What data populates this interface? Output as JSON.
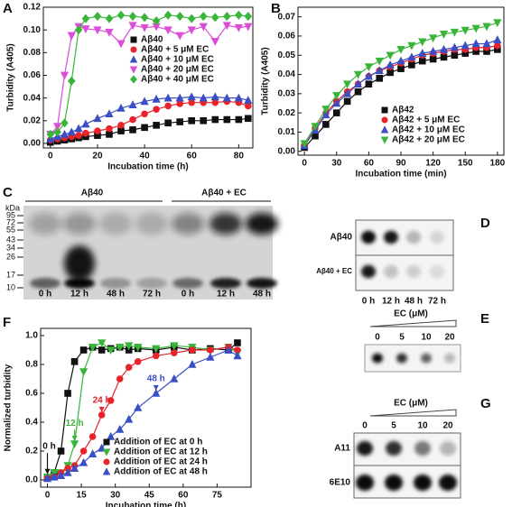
{
  "chart_data": [
    {
      "type": "line",
      "panel": "A",
      "xlabel": "Incubation time (h)",
      "ylabel": "Turbidity (A405)",
      "x": [
        0,
        3,
        6,
        9,
        12,
        15,
        20,
        25,
        30,
        35,
        40,
        45,
        50,
        55,
        60,
        65,
        70,
        75,
        80,
        84
      ],
      "xlim": [
        -3,
        86
      ],
      "xticks": [
        0,
        20,
        40,
        60,
        80
      ],
      "ylim": [
        -0.004,
        0.12
      ],
      "yticks": [
        {
          "value": 0,
          "label": "0.00"
        },
        0.02,
        0.04,
        0.06,
        0.08,
        {
          "value": 0.1,
          "label": "0.10"
        },
        0.12
      ],
      "legend": "center right",
      "series": [
        {
          "name": "Aβ40",
          "color": "#111111",
          "marker": "square",
          "values": [
            0.001,
            0.002,
            0.003,
            0.004,
            0.005,
            0.006,
            0.007,
            0.008,
            0.011,
            0.012,
            0.014,
            0.016,
            0.018,
            0.019,
            0.02,
            0.02,
            0.021,
            0.021,
            0.021,
            0.022
          ]
        },
        {
          "name": "Aβ40 + 5 μM EC",
          "color": "#e8232a",
          "marker": "circle",
          "values": [
            0.003,
            0.004,
            0.005,
            0.006,
            0.007,
            0.009,
            0.011,
            0.013,
            0.016,
            0.021,
            0.026,
            0.03,
            0.033,
            0.035,
            0.036,
            0.036,
            0.036,
            0.037,
            0.036,
            0.033
          ]
        },
        {
          "name": "Aβ40 + 10 μM EC",
          "color": "#3a4fc4",
          "marker": "triangle-up",
          "values": [
            0.004,
            0.006,
            0.008,
            0.01,
            0.013,
            0.017,
            0.022,
            0.026,
            0.031,
            0.034,
            0.037,
            0.039,
            0.04,
            0.04,
            0.041,
            0.04,
            0.041,
            0.04,
            0.04,
            0.038
          ]
        },
        {
          "name": "Aβ40 + 20 μM EC",
          "color": "#d94fd6",
          "marker": "triangle-down",
          "values": [
            0.008,
            0.015,
            0.06,
            0.095,
            0.103,
            0.101,
            0.1,
            0.098,
            0.088,
            0.104,
            0.102,
            0.103,
            0.1,
            0.095,
            0.1,
            0.103,
            0.09,
            0.104,
            0.102,
            0.103
          ]
        },
        {
          "name": "Aβ40 + 40 μM EC",
          "color": "#3ab53a",
          "marker": "diamond",
          "values": [
            0.008,
            0.01,
            0.018,
            0.055,
            0.1,
            0.11,
            0.112,
            0.11,
            0.113,
            0.112,
            0.111,
            0.108,
            0.113,
            0.112,
            0.11,
            0.112,
            0.111,
            0.112,
            0.113,
            0.112
          ]
        }
      ]
    },
    {
      "type": "line",
      "panel": "B",
      "xlabel": "Incubation time (min)",
      "ylabel": "Turbidity (A405)",
      "x": [
        0,
        10,
        20,
        30,
        40,
        50,
        60,
        70,
        80,
        90,
        100,
        110,
        120,
        130,
        140,
        150,
        160,
        170,
        180
      ],
      "xlim": [
        -6,
        186
      ],
      "xticks": [
        0,
        30,
        60,
        90,
        120,
        150,
        180
      ],
      "ylim": [
        -0.002,
        0.075
      ],
      "yticks": [
        {
          "value": 0,
          "label": "0.00"
        },
        0.01,
        0.02,
        0.03,
        0.04,
        0.05,
        0.06,
        0.07
      ],
      "legend": "lower right",
      "series": [
        {
          "name": "Aβ42",
          "color": "#111111",
          "marker": "square",
          "values": [
            0.002,
            0.008,
            0.014,
            0.02,
            0.026,
            0.031,
            0.035,
            0.038,
            0.041,
            0.043,
            0.045,
            0.047,
            0.048,
            0.049,
            0.05,
            0.051,
            0.052,
            0.052,
            0.053
          ]
        },
        {
          "name": "Aβ42 + 5 μM EC",
          "color": "#e8232a",
          "marker": "circle",
          "values": [
            0.003,
            0.012,
            0.02,
            0.026,
            0.031,
            0.035,
            0.039,
            0.042,
            0.044,
            0.046,
            0.048,
            0.05,
            0.051,
            0.052,
            0.053,
            0.053,
            0.054,
            0.054,
            0.055
          ]
        },
        {
          "name": "Aβ42 + 10 μM EC",
          "color": "#3a4fc4",
          "marker": "triangle-up",
          "values": [
            0.003,
            0.011,
            0.019,
            0.025,
            0.03,
            0.035,
            0.039,
            0.042,
            0.045,
            0.047,
            0.049,
            0.051,
            0.052,
            0.053,
            0.054,
            0.055,
            0.056,
            0.056,
            0.058
          ]
        },
        {
          "name": "Aβ42 + 20 μM EC",
          "color": "#3ab53a",
          "marker": "triangle-down",
          "values": [
            0.004,
            0.013,
            0.022,
            0.029,
            0.035,
            0.04,
            0.044,
            0.047,
            0.05,
            0.053,
            0.055,
            0.057,
            0.059,
            0.061,
            0.062,
            0.063,
            0.064,
            0.065,
            0.067
          ]
        }
      ]
    },
    {
      "type": "line",
      "panel": "F",
      "xlabel": "Incubation time (h)",
      "ylabel": "Normalized turbidity",
      "x": [
        0,
        3,
        6,
        9,
        12,
        16,
        20,
        24,
        28,
        32,
        36,
        40,
        48,
        56,
        64,
        72,
        80,
        84
      ],
      "xlim": [
        -3,
        90
      ],
      "xticks": [
        0,
        15,
        30,
        45,
        60,
        75
      ],
      "ylim": [
        -0.05,
        1.05
      ],
      "yticks": [
        {
          "value": 0,
          "label": "0.0"
        },
        0.2,
        0.4,
        0.6,
        0.8,
        {
          "value": 1,
          "label": "1.0"
        }
      ],
      "legend": "lower right",
      "annotations": [
        {
          "text": "0 h",
          "color": "#111111"
        },
        {
          "text": "12 h",
          "color": "#3ab53a"
        },
        {
          "text": "24 h",
          "color": "#e8232a"
        },
        {
          "text": "48 h",
          "color": "#3a4fc4"
        }
      ],
      "series": [
        {
          "name": "Addition of EC at 0 h",
          "color": "#111111",
          "marker": "square",
          "values": [
            0.02,
            0.05,
            0.2,
            0.6,
            0.82,
            0.9,
            0.92,
            0.9,
            0.91,
            0.92,
            0.9,
            0.91,
            0.9,
            0.92,
            0.9,
            0.91,
            0.9,
            0.95
          ]
        },
        {
          "name": "Addition of EC at 12 h",
          "color": "#3ab53a",
          "marker": "triangle-down",
          "values": [
            0.02,
            0.05,
            0.05,
            0.1,
            0.25,
            0.75,
            0.92,
            0.95,
            0.9,
            0.92,
            0.93,
            0.92,
            0.91,
            0.93,
            0.92,
            0.9,
            0.92,
            0.88
          ]
        },
        {
          "name": "Addition of EC at 24 h",
          "color": "#e8232a",
          "marker": "circle",
          "values": [
            0.01,
            0.02,
            0.05,
            0.08,
            0.1,
            0.2,
            0.3,
            0.45,
            0.55,
            0.7,
            0.78,
            0.82,
            0.86,
            0.88,
            0.9,
            0.9,
            0.92,
            0.9
          ]
        },
        {
          "name": "Addition of EC at 48 h",
          "color": "#3a4fc4",
          "marker": "triangle-up",
          "values": [
            0.01,
            0.02,
            0.03,
            0.05,
            0.08,
            0.12,
            0.18,
            0.22,
            0.3,
            0.35,
            0.42,
            0.5,
            0.6,
            0.7,
            0.8,
            0.85,
            0.9,
            0.86
          ]
        }
      ]
    }
  ],
  "gel_C": {
    "panel": "C",
    "groups": [
      "Aβ40",
      "Aβ40 + EC"
    ],
    "unit": "kDa",
    "markers": [
      95,
      72,
      55,
      43,
      34,
      26,
      17,
      10
    ],
    "lanes": [
      "0 h",
      "12 h",
      "48 h",
      "72 h",
      "0 h",
      "12 h",
      "48 h"
    ]
  },
  "dot_D": {
    "panel": "D",
    "rows": [
      "Aβ40",
      "Aβ40 + EC"
    ],
    "columns": [
      "0 h",
      "12 h",
      "48 h",
      "72 h"
    ]
  },
  "dot_E": {
    "panel": "E",
    "label": "EC (μM)",
    "columns": [
      0,
      5,
      10,
      20
    ]
  },
  "dot_G": {
    "panel": "G",
    "label": "EC (μM)",
    "columns": [
      0,
      5,
      10,
      20
    ],
    "rows": [
      "A11",
      "6E10"
    ]
  }
}
